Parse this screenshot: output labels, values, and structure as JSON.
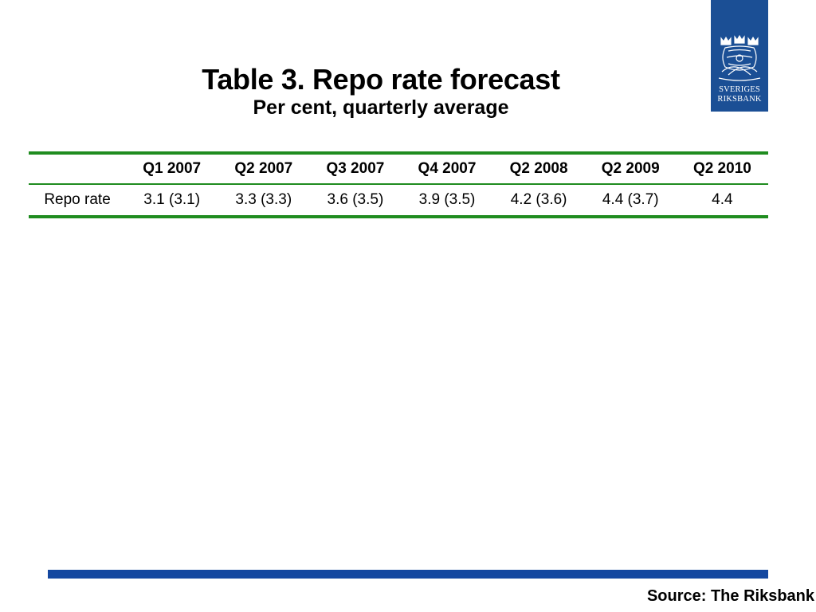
{
  "title": "Table 3. Repo rate forecast",
  "subtitle": "Per cent, quarterly average",
  "logo": {
    "line1": "SVERIGES",
    "line2": "RIKSBANK",
    "brand_color": "#1b4f95"
  },
  "table": {
    "header_empty": "",
    "columns": [
      "Q1 2007",
      "Q2 2007",
      "Q3 2007",
      "Q4 2007",
      "Q2 2008",
      "Q2 2009",
      "Q2 2010"
    ],
    "rows": [
      {
        "label": "Repo rate",
        "values": [
          "3.1 (3.1)",
          "3.3 (3.3)",
          "3.6 (3.5)",
          "3.9 (3.5)",
          "4.2 (3.6)",
          "4.4 (3.7)",
          "4.4"
        ]
      }
    ],
    "rule_color": "#1f8c1f"
  },
  "footer": {
    "source": "Source: The Riksbank",
    "bar_color": "#1448a0"
  }
}
